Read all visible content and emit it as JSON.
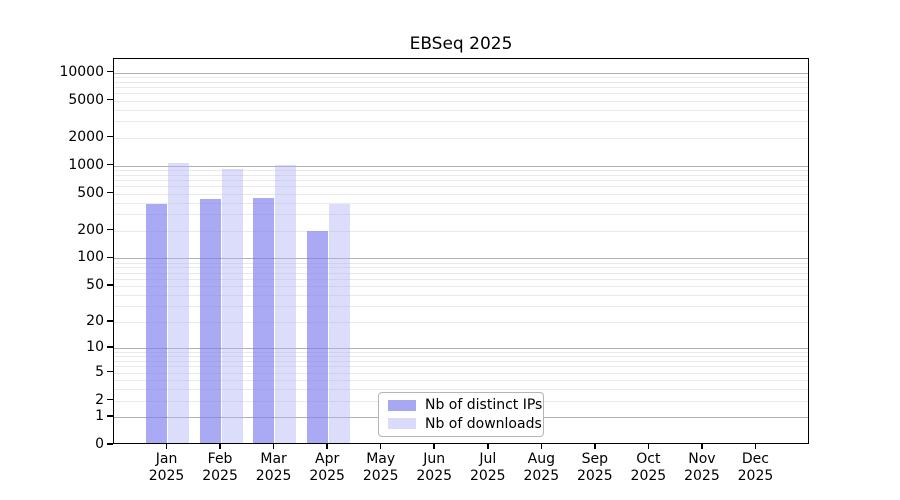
{
  "figure": {
    "title": "EBSeq 2025"
  },
  "chart_data": {
    "type": "bar",
    "title": "EBSeq 2025",
    "x_axis": {
      "categories": [
        "Jan",
        "Feb",
        "Mar",
        "Apr",
        "May",
        "Jun",
        "Jul",
        "Aug",
        "Sep",
        "Oct",
        "Nov",
        "Dec"
      ],
      "year": "2025"
    },
    "y_axis": {
      "scale": "log1p",
      "ticks": [
        0,
        1,
        2,
        5,
        10,
        20,
        50,
        100,
        200,
        500,
        1000,
        2000,
        5000,
        10000
      ],
      "top_value": 14000,
      "major_gridline_values": [
        1,
        10,
        100,
        1000,
        10000
      ]
    },
    "series": [
      {
        "name": "Nb of distinct IPs",
        "fill": "rgba(124,124,238,0.66)",
        "legend_fill": "#a7a7f2",
        "values": [
          390,
          440,
          450,
          200,
          null,
          null,
          null,
          null,
          null,
          null,
          null,
          null
        ]
      },
      {
        "name": "Nb of downloads",
        "fill": "rgba(178,178,246,0.46)",
        "legend_fill": "#dadafa",
        "values": [
          1060,
          930,
          1020,
          390,
          null,
          null,
          null,
          null,
          null,
          null,
          null,
          null
        ]
      }
    ],
    "grid": {
      "major_color": "#b0b0b0",
      "minor_color": "#e9e9e9"
    },
    "colors": {
      "spine": "#000000",
      "text": "#000000",
      "background": "#ffffff"
    },
    "legend_position": "lower-center"
  }
}
